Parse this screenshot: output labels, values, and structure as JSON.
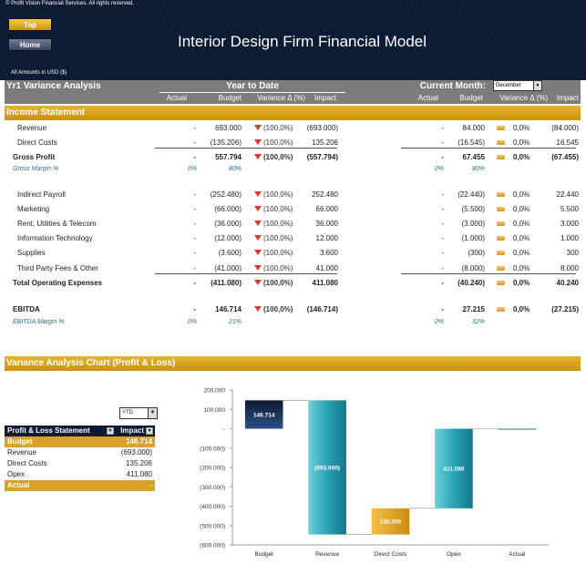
{
  "header": {
    "copyright": "© Profit Vision Financial Services. All rights reserved.",
    "top_label": "Top",
    "home_label": "Home",
    "title": "Interior Design Firm Financial Model",
    "amounts_note": "All Amounts in  USD ($)"
  },
  "variance": {
    "title": "Yr1 Variance Analysis",
    "ytd_label": "Year to Date",
    "cm_label": "Current Month:",
    "month": "December",
    "cols": [
      "Actual",
      "Budget",
      "Variance Δ  (%)",
      "Impact"
    ]
  },
  "income_section": "Income Statement",
  "rows": [
    {
      "label": "Revenue",
      "type": "normal",
      "ytd": [
        "-",
        "693.000",
        "(100,0%)",
        "(693.000)"
      ],
      "cm": [
        "-",
        "84.000",
        "0,0%",
        "(84.000)"
      ]
    },
    {
      "label": "Direct Costs",
      "type": "normal",
      "ytd": [
        "-",
        "(135.206)",
        "(100,0%)",
        "135.206"
      ],
      "cm": [
        "-",
        "(16.545)",
        "0,0%",
        "16.545"
      ]
    },
    {
      "label": "Gross Profit",
      "type": "bold",
      "ytd": [
        "-",
        "557.794",
        "(100,0%)",
        "(557.794)"
      ],
      "cm": [
        "-",
        "67.455",
        "0,0%",
        "(67.455)"
      ]
    },
    {
      "label": "Gross Margin %",
      "type": "margin",
      "ytd": [
        "0%",
        "80%"
      ],
      "cm": [
        "0%",
        "80%"
      ]
    },
    {
      "label": "Indirect Payroll",
      "type": "normal",
      "ytd": [
        "-",
        "(252.480)",
        "(100,0%)",
        "252.480"
      ],
      "cm": [
        "-",
        "(22.440)",
        "0,0%",
        "22.440"
      ]
    },
    {
      "label": "Marketing",
      "type": "normal",
      "ytd": [
        "-",
        "(66.000)",
        "(100,0%)",
        "66.000"
      ],
      "cm": [
        "-",
        "(5.500)",
        "0,0%",
        "5.500"
      ]
    },
    {
      "label": "Rent, Utilities & Telecom",
      "type": "normal",
      "ytd": [
        "-",
        "(36.000)",
        "(100,0%)",
        "36.000"
      ],
      "cm": [
        "-",
        "(3.000)",
        "0,0%",
        "3.000"
      ]
    },
    {
      "label": "Information Technology",
      "type": "normal",
      "ytd": [
        "-",
        "(12.000)",
        "(100,0%)",
        "12.000"
      ],
      "cm": [
        "-",
        "(1.000)",
        "0,0%",
        "1.000"
      ]
    },
    {
      "label": "Supplies",
      "type": "normal",
      "ytd": [
        "-",
        "(3.600)",
        "(100,0%)",
        "3.600"
      ],
      "cm": [
        "-",
        "(300)",
        "0,0%",
        "300"
      ]
    },
    {
      "label": "Third Party Fees & Other",
      "type": "normal",
      "ytd": [
        "-",
        "(41.000)",
        "(100,0%)",
        "41.000"
      ],
      "cm": [
        "-",
        "(8.000)",
        "0,0%",
        "8.000"
      ]
    },
    {
      "label": "Total Operating Expenses",
      "type": "bold",
      "ytd": [
        "-",
        "(411.080)",
        "(100,0%)",
        "411.080"
      ],
      "cm": [
        "-",
        "(40.240)",
        "0,0%",
        "40.240"
      ]
    },
    {
      "label": "EBITDA",
      "type": "bold",
      "ytd": [
        "-",
        "146.714",
        "(100,0%)",
        "(146.714)"
      ],
      "cm": [
        "-",
        "27.215",
        "0,0%",
        "(27.215)"
      ]
    },
    {
      "label": "EBITDA Margin %",
      "type": "margin",
      "ytd": [
        "0%",
        "21%"
      ],
      "cm": [
        "0%",
        "32%"
      ]
    }
  ],
  "chart_section": "Variance Analysis Chart (Profit & Loss)",
  "filter_value": "YTD",
  "pl_table": {
    "headers": [
      "Profit & Loss Statement",
      "Impact"
    ],
    "rows": [
      {
        "name": "Budget",
        "value": "146.714",
        "style": "gold"
      },
      {
        "name": "Revenue",
        "value": "(693.000)",
        "style": "plain"
      },
      {
        "name": "Direct Costs",
        "value": "135.206",
        "style": "plain"
      },
      {
        "name": "Opex",
        "value": "411.080",
        "style": "plain"
      },
      {
        "name": "Actual",
        "value": "-",
        "style": "gold"
      }
    ]
  },
  "colors": {
    "navy": "#0b1a33",
    "gold": "#d9a22a",
    "teal": "#2aa3b5",
    "red_arrow": "#d43b2b"
  },
  "chart_data": {
    "type": "bar",
    "subtype": "waterfall",
    "categories": [
      "Budget",
      "Revenue",
      "Direct Costs",
      "Opex",
      "Actual"
    ],
    "bars": [
      {
        "category": "Budget",
        "start": 0,
        "end": 146714,
        "label": "146.714"
      },
      {
        "category": "Revenue",
        "start": 146714,
        "end": -546286,
        "label": "(693.000)"
      },
      {
        "category": "Direct Costs",
        "start": -546286,
        "end": -411080,
        "label": "135.206"
      },
      {
        "category": "Opex",
        "start": -411080,
        "end": 0,
        "label": "411.080"
      },
      {
        "category": "Actual",
        "start": 0,
        "end": 0,
        "label": ""
      }
    ],
    "ylim": [
      -600000,
      200000
    ],
    "yticks": [
      200000,
      100000,
      0,
      -100000,
      -200000,
      -300000,
      -400000,
      -500000,
      -600000
    ],
    "ytick_labels": [
      "200.000",
      "100.000",
      "-",
      "(100.000)",
      "(200.000)",
      "(300.000)",
      "(400.000)",
      "(500.000)",
      "(600.000)"
    ]
  }
}
